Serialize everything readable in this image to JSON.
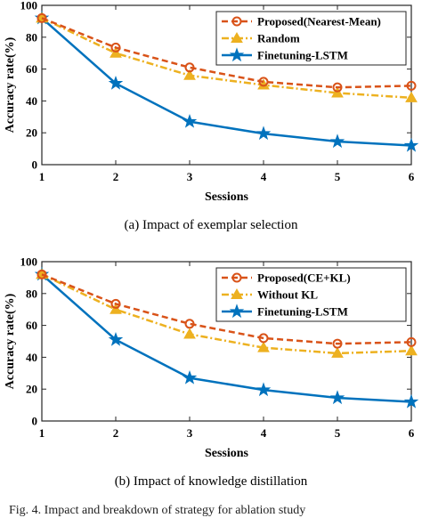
{
  "charts": [
    {
      "caption": "(a)  Impact of exemplar selection",
      "chart_data": {
        "type": "line",
        "xlabel": "Sessions",
        "ylabel": "Accuracy rate(%)",
        "x": [
          1,
          2,
          3,
          4,
          5,
          6
        ],
        "xlim": [
          1,
          6
        ],
        "ylim": [
          0,
          100
        ],
        "yticks": [
          0,
          20,
          40,
          60,
          80,
          100
        ],
        "grid": false,
        "legend_position": "top-right",
        "series": [
          {
            "name": "Proposed(Nearest-Mean)",
            "values": [
              92,
              73.5,
              61,
              52,
              48.5,
              49.5
            ],
            "color": "#d95319",
            "style": "dashed",
            "marker": "circle"
          },
          {
            "name": "Random",
            "values": [
              92,
              70,
              56,
              50,
              45,
              42
            ],
            "color": "#edb120",
            "style": "dashdot",
            "marker": "triangle"
          },
          {
            "name": "Finetuning-LSTM",
            "values": [
              92,
              51,
              27,
              19.5,
              14.5,
              12
            ],
            "color": "#0072bd",
            "style": "solid",
            "marker": "star"
          }
        ]
      }
    },
    {
      "caption": "(b)  Impact of knowledge distillation",
      "chart_data": {
        "type": "line",
        "xlabel": "Sessions",
        "ylabel": "Accuracy rate(%)",
        "x": [
          1,
          2,
          3,
          4,
          5,
          6
        ],
        "xlim": [
          1,
          6
        ],
        "ylim": [
          0,
          100
        ],
        "yticks": [
          0,
          20,
          40,
          60,
          80,
          100
        ],
        "grid": false,
        "legend_position": "top-right",
        "series": [
          {
            "name": "Proposed(CE+KL)",
            "values": [
              92,
              73.5,
              61,
              52,
              48.5,
              49.5
            ],
            "color": "#d95319",
            "style": "dashed",
            "marker": "circle"
          },
          {
            "name": "Without KL",
            "values": [
              92,
              70,
              54.5,
              46,
              42.5,
              44
            ],
            "color": "#edb120",
            "style": "dashdot",
            "marker": "triangle"
          },
          {
            "name": "Finetuning-LSTM",
            "values": [
              92,
              51,
              27,
              19.5,
              14.5,
              12
            ],
            "color": "#0072bd",
            "style": "solid",
            "marker": "star"
          }
        ]
      }
    }
  ],
  "footer_text": "Fig. 4.  Impact and breakdown of strategy for ablation study"
}
